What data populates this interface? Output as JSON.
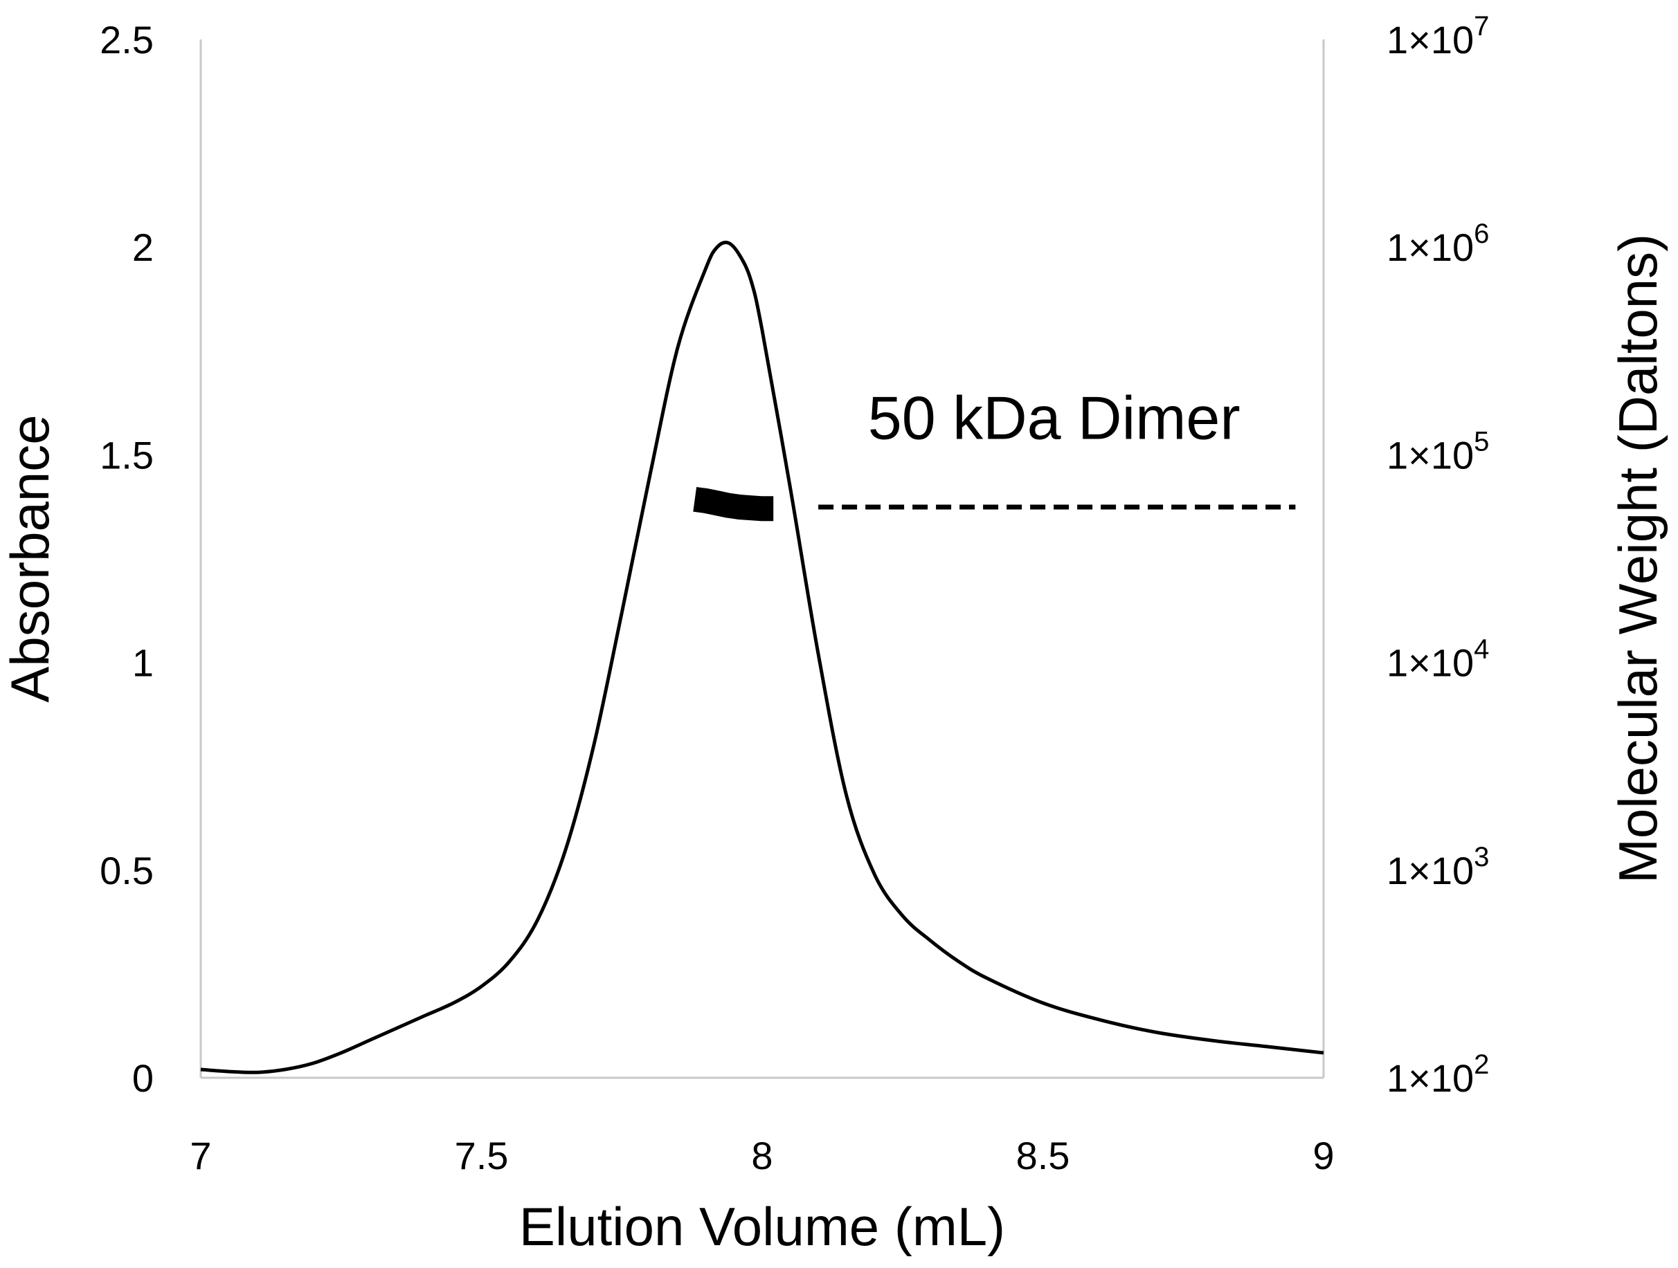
{
  "chart_data": {
    "type": "line",
    "title": "",
    "xlabel": "Elution Volume (mL)",
    "ylabel": "Absorbance",
    "y2label": "Molecular Weight (Daltons)",
    "xlim": [
      7,
      9
    ],
    "ylim": [
      0,
      2.5
    ],
    "y2lim": [
      100,
      10000000
    ],
    "y2scale": "log",
    "grid": false,
    "legend": "none",
    "x_ticks": [
      "7",
      "7.5",
      "8",
      "8.5",
      "9"
    ],
    "y_ticks": [
      "0",
      "0.5",
      "1",
      "1.5",
      "2",
      "2.5"
    ],
    "y2_ticks": [
      {
        "base": "1×10",
        "exp": "2"
      },
      {
        "base": "1×10",
        "exp": "3"
      },
      {
        "base": "1×10",
        "exp": "4"
      },
      {
        "base": "1×10",
        "exp": "5"
      },
      {
        "base": "1×10",
        "exp": "6"
      },
      {
        "base": "1×10",
        "exp": "7"
      }
    ],
    "series": [
      {
        "axis": "left",
        "style": "solid",
        "color": "#000000",
        "x": [
          7.0,
          7.05,
          7.1,
          7.15,
          7.2,
          7.25,
          7.3,
          7.35,
          7.4,
          7.45,
          7.5,
          7.55,
          7.6,
          7.65,
          7.7,
          7.75,
          7.8,
          7.85,
          7.9,
          7.92,
          7.94,
          7.96,
          7.98,
          8.0,
          8.05,
          8.1,
          8.15,
          8.2,
          8.25,
          8.3,
          8.35,
          8.4,
          8.5,
          8.6,
          8.7,
          8.8,
          8.9,
          9.0
        ],
        "y": [
          0.02,
          0.015,
          0.013,
          0.02,
          0.035,
          0.06,
          0.09,
          0.12,
          0.15,
          0.18,
          0.22,
          0.28,
          0.38,
          0.55,
          0.8,
          1.12,
          1.45,
          1.76,
          1.95,
          2.0,
          2.01,
          1.98,
          1.92,
          1.8,
          1.42,
          1.02,
          0.68,
          0.49,
          0.39,
          0.33,
          0.28,
          0.24,
          0.18,
          0.14,
          0.11,
          0.09,
          0.075,
          0.06
        ]
      },
      {
        "axis": "right",
        "style": "thick",
        "color": "#000000",
        "x": [
          7.88,
          7.9,
          7.92,
          7.94,
          7.96,
          7.98,
          8.0,
          8.02
        ],
        "y": [
          61000,
          60000,
          58500,
          57000,
          56000,
          55500,
          55000,
          55000
        ]
      },
      {
        "axis": "right",
        "style": "dashed",
        "color": "#000000",
        "x": [
          8.1,
          8.95
        ],
        "y": [
          56000,
          56000
        ]
      }
    ],
    "annotations": [
      {
        "text": "50 kDa Dimer",
        "x": 8.52,
        "y2": 150000
      }
    ]
  }
}
